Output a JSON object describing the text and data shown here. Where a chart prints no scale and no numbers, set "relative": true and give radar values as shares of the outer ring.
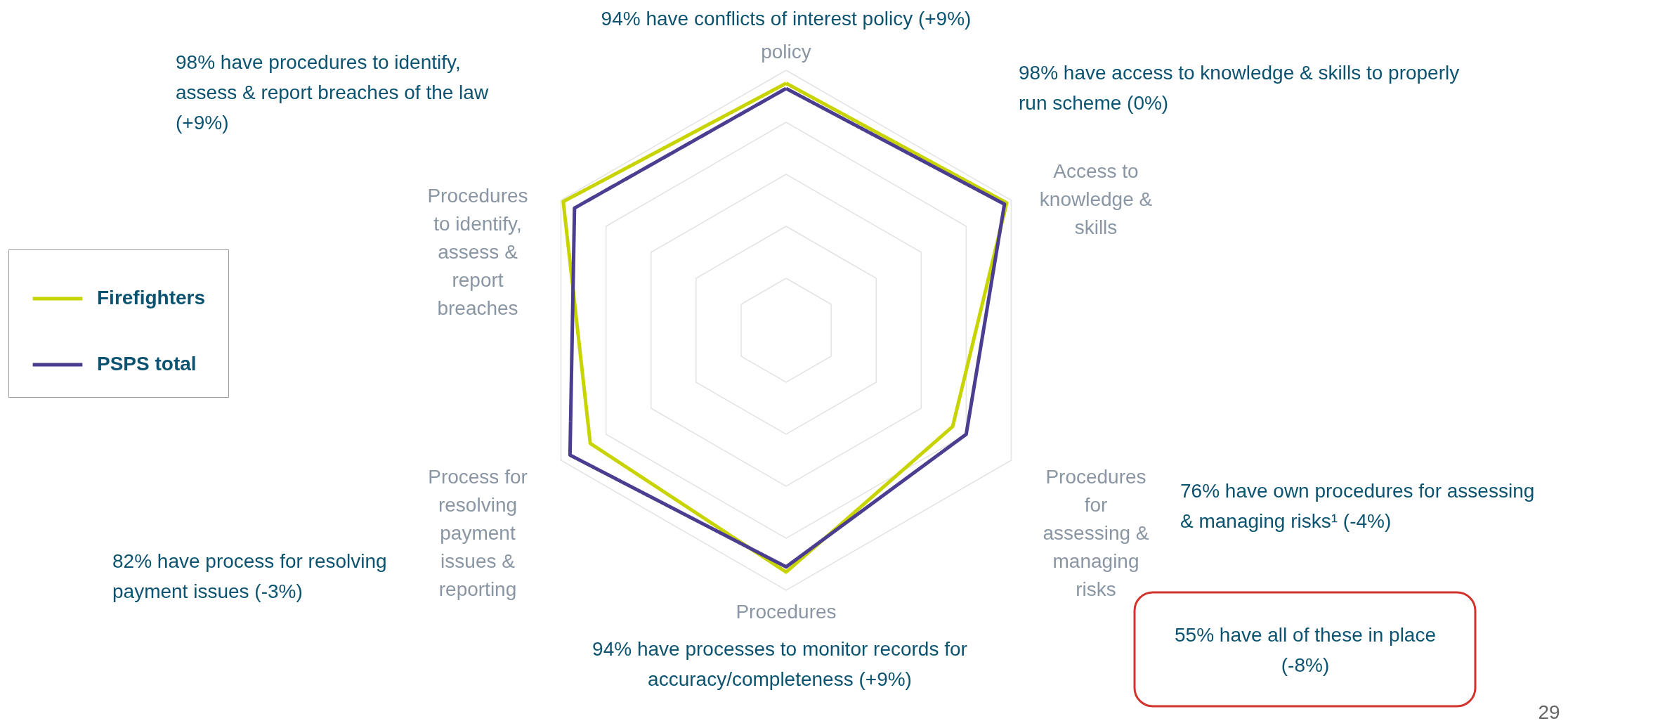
{
  "chart_data": {
    "type": "radar",
    "relative": true,
    "grid": true,
    "legend": "left",
    "categories": [
      "policy",
      "Access to knowledge & skills",
      "Procedures for assessing & managing risks",
      "Procedures",
      "Process for resolving payment issues & reporting",
      "Procedures to identify, assess & report breaches"
    ],
    "series": [
      {
        "name": "Firefighters",
        "color": "#c8d400",
        "values": [
          0.95,
          0.98,
          0.74,
          0.93,
          0.87,
          0.99
        ]
      },
      {
        "name": "PSPS total",
        "color": "#4b3d8f",
        "values": [
          0.93,
          0.97,
          0.8,
          0.91,
          0.96,
          0.94
        ]
      }
    ],
    "annotations": [
      "94% have conflicts of interest policy (+9%)",
      "98% have procedures to identify, assess & report breaches of the law (+9%)",
      "98% have access to knowledge & skills to properly run scheme (0%)",
      "76% have own procedures for assessing & managing risks¹ (-4%)",
      "82% have process for resolving payment issues (-3%)",
      "94% have processes to monitor records for accuracy/completeness (+9%)",
      "55% have all of these in place (-8%)",
      "29"
    ]
  }
}
